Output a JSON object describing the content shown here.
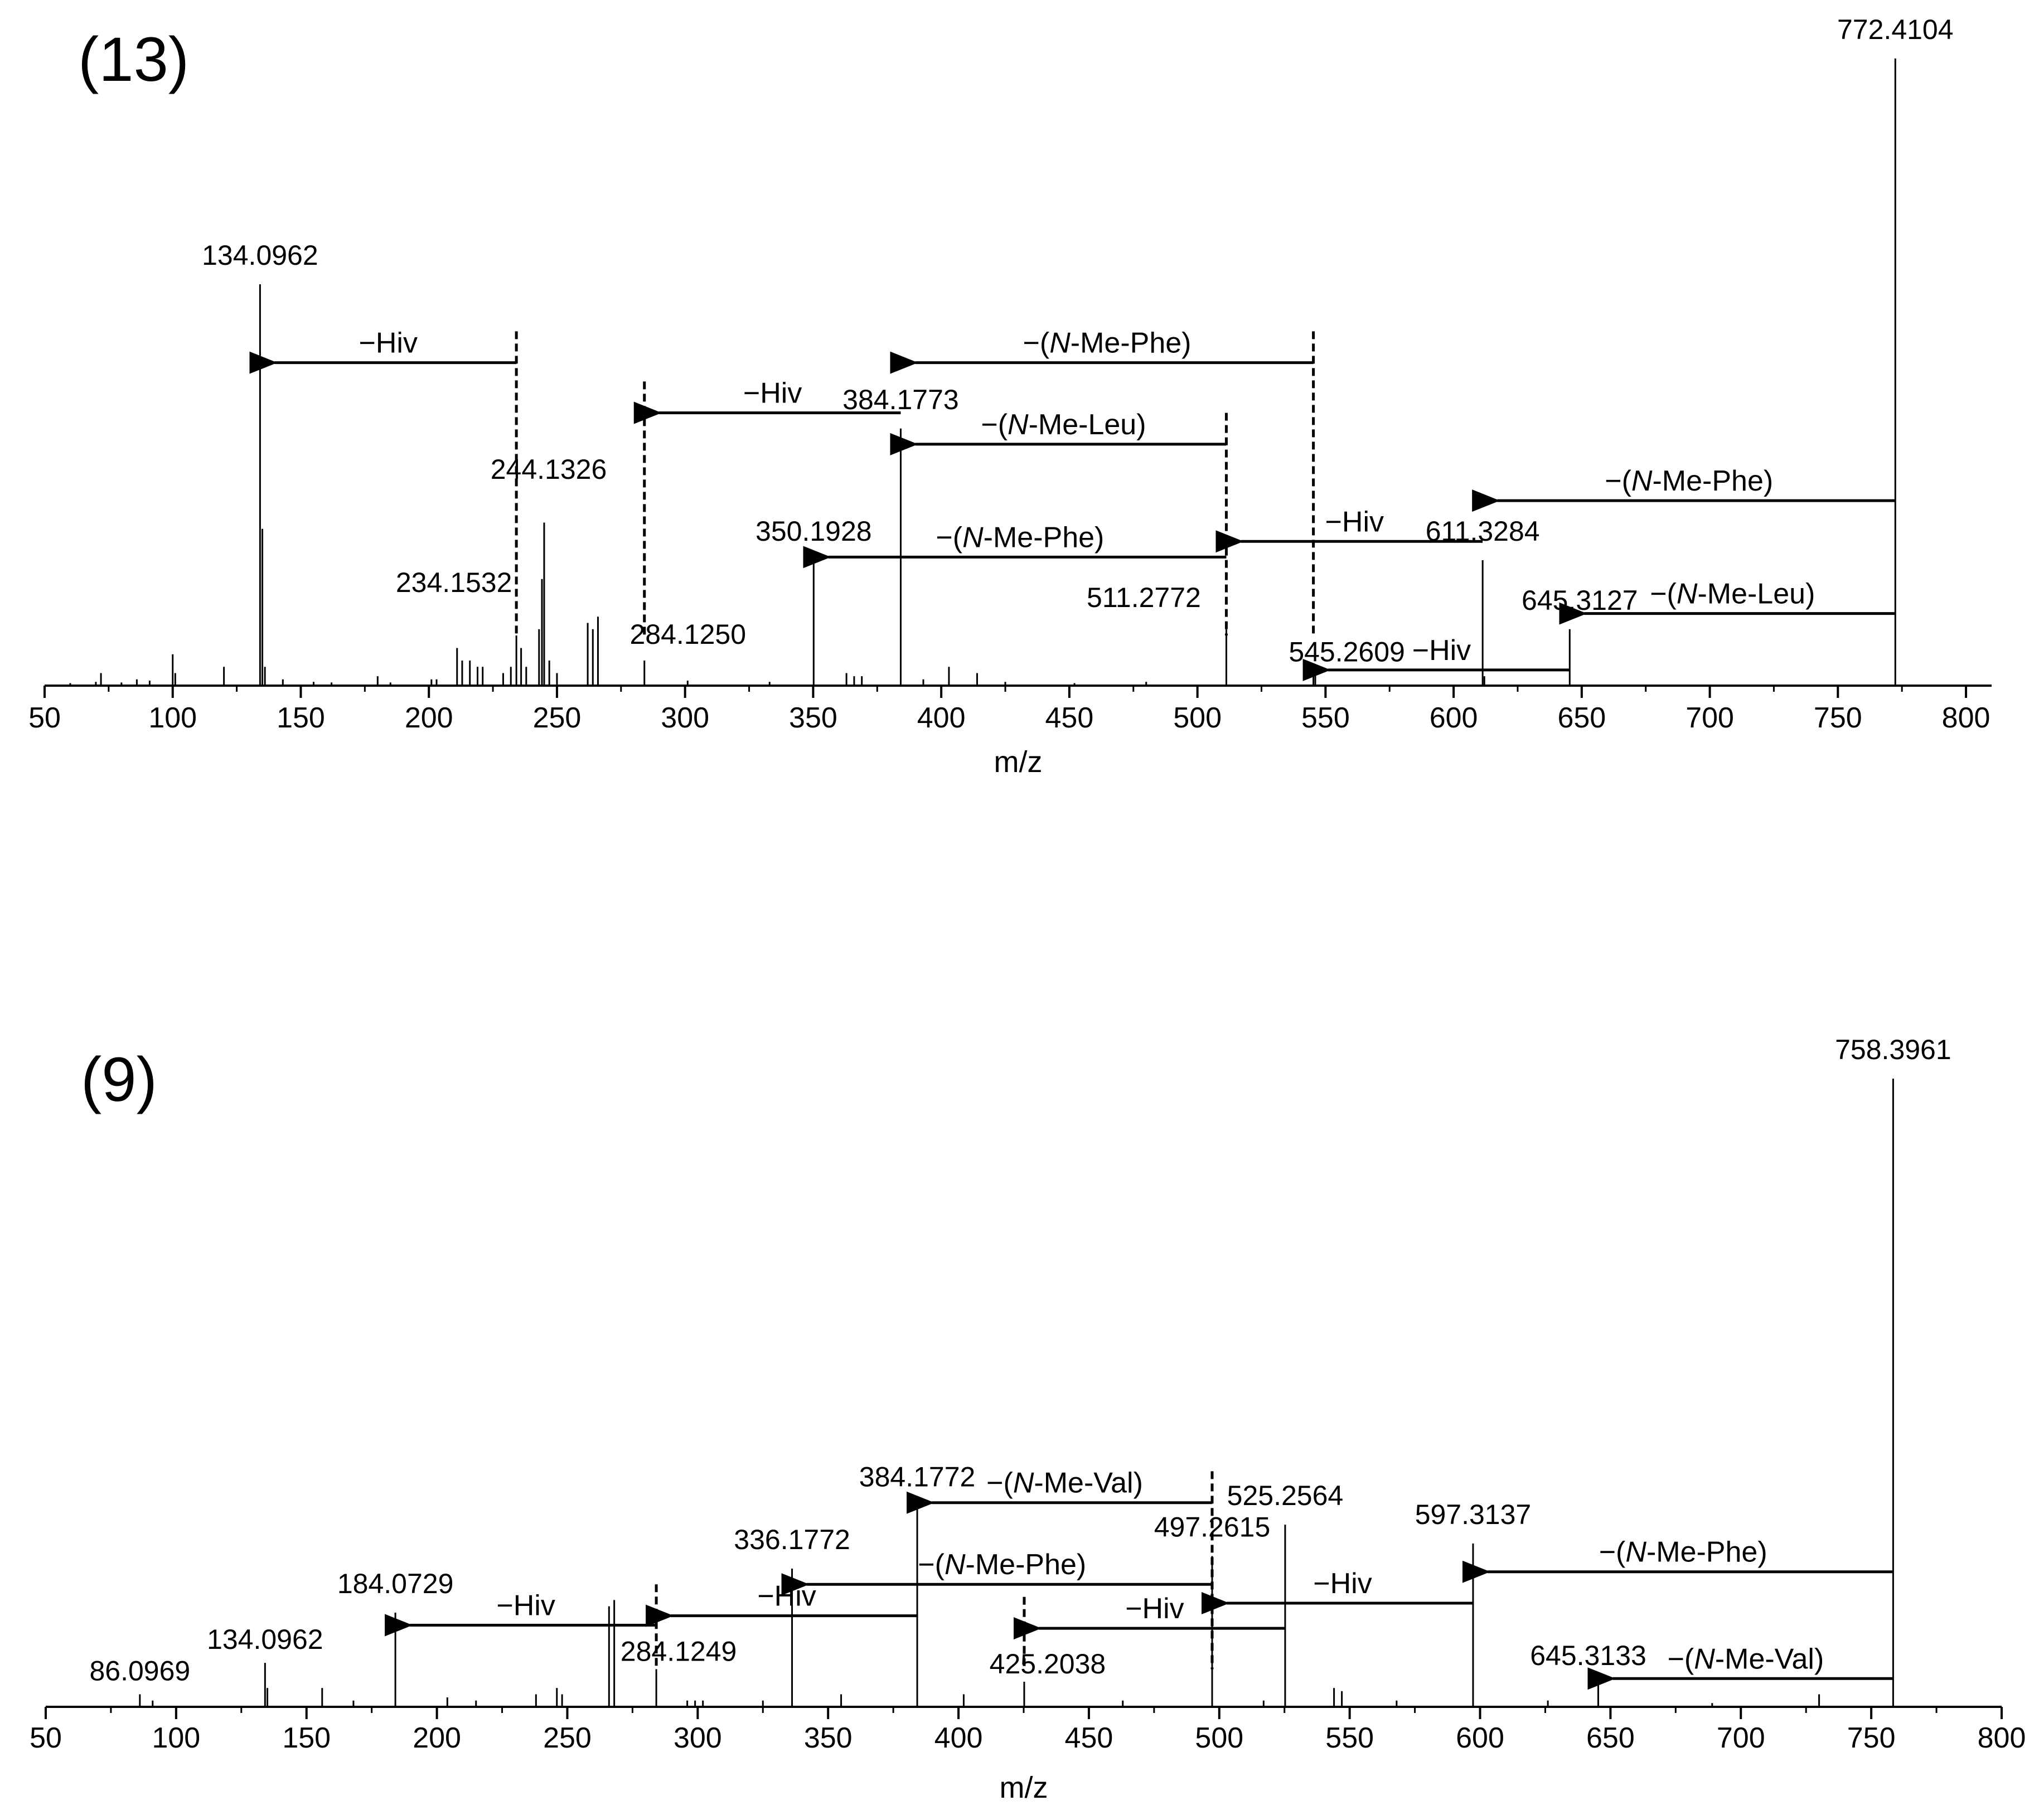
{
  "chart_data": [
    {
      "type": "bar",
      "panel_label": "(13)",
      "xlabel": "m/z",
      "xlim": [
        50,
        810
      ],
      "xticks": [
        50,
        100,
        150,
        200,
        250,
        300,
        350,
        400,
        450,
        500,
        550,
        600,
        650,
        700,
        750,
        800
      ],
      "ylim": [
        0,
        100
      ],
      "grid": false,
      "labeled_peaks": [
        {
          "mz": 134.0962,
          "intensity": 64,
          "label": "134.0962"
        },
        {
          "mz": 234.1532,
          "intensity": 8,
          "label": "234.1532"
        },
        {
          "mz": 244.1326,
          "intensity": 17,
          "label": "244.1326"
        },
        {
          "mz": 284.125,
          "intensity": 4,
          "label": "284.1250"
        },
        {
          "mz": 350.1928,
          "intensity": 20,
          "label": "350.1928"
        },
        {
          "mz": 384.1773,
          "intensity": 41,
          "label": "384.1773"
        },
        {
          "mz": 511.2772,
          "intensity": 9,
          "label": "511.2772"
        },
        {
          "mz": 545.2609,
          "intensity": 3,
          "label": "545.2609"
        },
        {
          "mz": 611.3284,
          "intensity": 20,
          "label": "611.3284"
        },
        {
          "mz": 645.3127,
          "intensity": 9,
          "label": "645.3127"
        },
        {
          "mz": 772.4104,
          "intensity": 100,
          "label": "772.4104"
        }
      ],
      "minor_peaks": [
        {
          "mz": 60,
          "intensity": 0.4
        },
        {
          "mz": 70,
          "intensity": 0.6
        },
        {
          "mz": 72,
          "intensity": 2
        },
        {
          "mz": 80,
          "intensity": 0.5
        },
        {
          "mz": 86,
          "intensity": 1
        },
        {
          "mz": 91,
          "intensity": 0.8
        },
        {
          "mz": 100,
          "intensity": 5
        },
        {
          "mz": 101,
          "intensity": 2
        },
        {
          "mz": 120,
          "intensity": 3
        },
        {
          "mz": 135,
          "intensity": 25
        },
        {
          "mz": 136,
          "intensity": 3
        },
        {
          "mz": 143,
          "intensity": 1
        },
        {
          "mz": 155,
          "intensity": 0.6
        },
        {
          "mz": 162,
          "intensity": 0.5
        },
        {
          "mz": 180,
          "intensity": 1.5
        },
        {
          "mz": 185,
          "intensity": 0.5
        },
        {
          "mz": 201,
          "intensity": 1
        },
        {
          "mz": 203,
          "intensity": 1
        },
        {
          "mz": 211,
          "intensity": 6
        },
        {
          "mz": 213,
          "intensity": 4
        },
        {
          "mz": 216,
          "intensity": 4
        },
        {
          "mz": 219,
          "intensity": 3
        },
        {
          "mz": 221,
          "intensity": 3
        },
        {
          "mz": 229,
          "intensity": 2
        },
        {
          "mz": 232,
          "intensity": 3
        },
        {
          "mz": 236,
          "intensity": 6
        },
        {
          "mz": 238,
          "intensity": 3
        },
        {
          "mz": 243,
          "intensity": 9
        },
        {
          "mz": 245,
          "intensity": 26
        },
        {
          "mz": 247,
          "intensity": 4
        },
        {
          "mz": 250,
          "intensity": 2
        },
        {
          "mz": 262,
          "intensity": 10
        },
        {
          "mz": 264,
          "intensity": 9
        },
        {
          "mz": 266,
          "intensity": 11
        },
        {
          "mz": 301,
          "intensity": 0.8
        },
        {
          "mz": 333,
          "intensity": 0.6
        },
        {
          "mz": 363,
          "intensity": 2
        },
        {
          "mz": 366,
          "intensity": 1.5
        },
        {
          "mz": 369,
          "intensity": 1.5
        },
        {
          "mz": 393,
          "intensity": 1
        },
        {
          "mz": 403,
          "intensity": 3
        },
        {
          "mz": 414,
          "intensity": 2
        },
        {
          "mz": 425,
          "intensity": 0.6
        },
        {
          "mz": 452,
          "intensity": 0.4
        },
        {
          "mz": 480,
          "intensity": 0.6
        },
        {
          "mz": 546,
          "intensity": 2
        },
        {
          "mz": 612,
          "intensity": 1.5
        }
      ],
      "annotations": [
        {
          "label": "−Hiv",
          "from": 234.1532,
          "to": 134.0962,
          "y": 51.5
        },
        {
          "label": "−Hiv",
          "from": 384.1773,
          "to": 284.125,
          "y": 43.5
        },
        {
          "label": "−(N-Me-Phe)",
          "from": 545.2609,
          "to": 384.1773,
          "y": 51.5
        },
        {
          "label": "−(N-Me-Leu)",
          "from": 511.2772,
          "to": 384.1773,
          "y": 38.5
        },
        {
          "label": "−(N-Me-Phe)",
          "from": 511.2772,
          "to": 350.1928,
          "y": 20.5
        },
        {
          "label": "−Hiv",
          "from": 611.3284,
          "to": 511.2772,
          "y": 23
        },
        {
          "label": "−(N-Me-Phe)",
          "from": 772.4104,
          "to": 611.3284,
          "y": 29.5
        },
        {
          "label": "−(N-Me-Leu)",
          "from": 772.4104,
          "to": 645.3127,
          "y": 11.5
        },
        {
          "label": "−Hiv",
          "from": 645.3127,
          "to": 545.2609,
          "y": 2.5
        }
      ]
    },
    {
      "type": "bar",
      "panel_label": "(9)",
      "xlabel": "m/z",
      "xlim": [
        50,
        800
      ],
      "xticks": [
        50,
        100,
        150,
        200,
        250,
        300,
        350,
        400,
        450,
        500,
        550,
        600,
        650,
        700,
        750,
        800
      ],
      "ylim": [
        0,
        100
      ],
      "grid": false,
      "labeled_peaks": [
        {
          "mz": 86.0969,
          "intensity": 2,
          "label": "86.0969"
        },
        {
          "mz": 134.0962,
          "intensity": 7,
          "label": "134.0962"
        },
        {
          "mz": 184.0729,
          "intensity": 15,
          "label": "184.0729"
        },
        {
          "mz": 284.1249,
          "intensity": 6,
          "label": "284.1249"
        },
        {
          "mz": 336.1772,
          "intensity": 22,
          "label": "336.1772"
        },
        {
          "mz": 384.1772,
          "intensity": 32,
          "label": "384.1772"
        },
        {
          "mz": 425.2038,
          "intensity": 4,
          "label": "425.2038"
        },
        {
          "mz": 497.2615,
          "intensity": 24,
          "label": "497.2615"
        },
        {
          "mz": 525.2564,
          "intensity": 29,
          "label": "525.2564"
        },
        {
          "mz": 597.3137,
          "intensity": 26,
          "label": "597.3137"
        },
        {
          "mz": 645.3133,
          "intensity": 4,
          "label": "645.3133"
        },
        {
          "mz": 758.3961,
          "intensity": 100,
          "label": "758.3961"
        }
      ],
      "minor_peaks": [
        {
          "mz": 91,
          "intensity": 1
        },
        {
          "mz": 135,
          "intensity": 3
        },
        {
          "mz": 156,
          "intensity": 3
        },
        {
          "mz": 168,
          "intensity": 1
        },
        {
          "mz": 204,
          "intensity": 1.5
        },
        {
          "mz": 215,
          "intensity": 1
        },
        {
          "mz": 238,
          "intensity": 2
        },
        {
          "mz": 246,
          "intensity": 3
        },
        {
          "mz": 248,
          "intensity": 2
        },
        {
          "mz": 266,
          "intensity": 16
        },
        {
          "mz": 268,
          "intensity": 17
        },
        {
          "mz": 296,
          "intensity": 1
        },
        {
          "mz": 299,
          "intensity": 1
        },
        {
          "mz": 302,
          "intensity": 1
        },
        {
          "mz": 325,
          "intensity": 1
        },
        {
          "mz": 355,
          "intensity": 2
        },
        {
          "mz": 402,
          "intensity": 2
        },
        {
          "mz": 463,
          "intensity": 1
        },
        {
          "mz": 517,
          "intensity": 1
        },
        {
          "mz": 544,
          "intensity": 3
        },
        {
          "mz": 547,
          "intensity": 2.5
        },
        {
          "mz": 568,
          "intensity": 1
        },
        {
          "mz": 626,
          "intensity": 1
        },
        {
          "mz": 689,
          "intensity": 0.6
        },
        {
          "mz": 730,
          "intensity": 2
        }
      ],
      "annotations": [
        {
          "label": "−(N-Me-Val)",
          "from": 497.2615,
          "to": 384.1772,
          "y": 32.5
        },
        {
          "label": "−(N-Me-Phe)",
          "from": 497.2615,
          "to": 336.1772,
          "y": 19.5
        },
        {
          "label": "−Hiv",
          "from": 384.1772,
          "to": 284.1249,
          "y": 14.5
        },
        {
          "label": "−Hiv",
          "from": 284.1249,
          "to": 184.0729,
          "y": 13
        },
        {
          "label": "−Hiv",
          "from": 525.2564,
          "to": 425.2038,
          "y": 12.5
        },
        {
          "label": "−Hiv",
          "from": 597.3137,
          "to": 497.2615,
          "y": 16.5
        },
        {
          "label": "−(N-Me-Phe)",
          "from": 758.3961,
          "to": 597.3137,
          "y": 21.5
        },
        {
          "label": "−(N-Me-Val)",
          "from": 758.3961,
          "to": 645.3133,
          "y": 4.5
        }
      ]
    }
  ]
}
